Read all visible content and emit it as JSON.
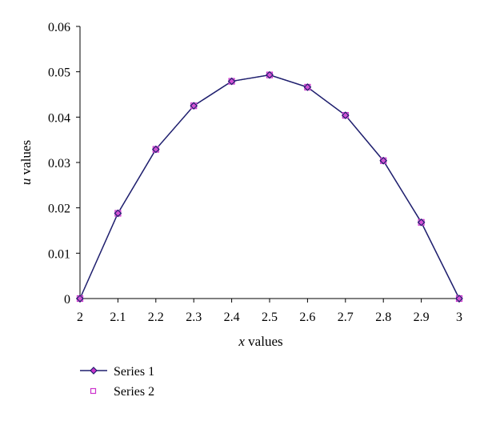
{
  "chart_data": {
    "type": "line",
    "x": [
      2.0,
      2.1,
      2.2,
      2.3,
      2.4,
      2.5,
      2.6,
      2.7,
      2.8,
      2.9,
      3.0
    ],
    "series": [
      {
        "name": "Series 1",
        "values": [
          0,
          0.0188,
          0.0329,
          0.0425,
          0.0479,
          0.0493,
          0.0466,
          0.0404,
          0.0304,
          0.0168,
          0
        ],
        "color": "#1f1f6e",
        "line": "solid",
        "marker": "diamond"
      },
      {
        "name": "Series 2",
        "values": [
          0,
          0.0188,
          0.0329,
          0.0425,
          0.0479,
          0.0493,
          0.0466,
          0.0404,
          0.0304,
          0.0168,
          0
        ],
        "color": "#cc33cc",
        "line": "dotted",
        "marker": "square"
      }
    ],
    "xlabel_italic": "x",
    "xlabel_rest": " values",
    "ylabel_italic": "u",
    "ylabel_rest": " values",
    "xlim": [
      2,
      3
    ],
    "ylim": [
      0,
      0.06
    ],
    "x_ticks": [
      "2",
      "2.1",
      "2.2",
      "2.3",
      "2.4",
      "2.5",
      "2.6",
      "2.7",
      "2.8",
      "2.9",
      "3"
    ],
    "x_tick_values": [
      2.0,
      2.1,
      2.2,
      2.3,
      2.4,
      2.5,
      2.6,
      2.7,
      2.8,
      2.9,
      3.0
    ],
    "y_ticks": [
      "0",
      "0.01",
      "0.02",
      "0.03",
      "0.04",
      "0.05",
      "0.06"
    ],
    "y_tick_values": [
      0,
      0.01,
      0.02,
      0.03,
      0.04,
      0.05,
      0.06
    ],
    "grid": false,
    "legend_position": "bottom-left"
  }
}
